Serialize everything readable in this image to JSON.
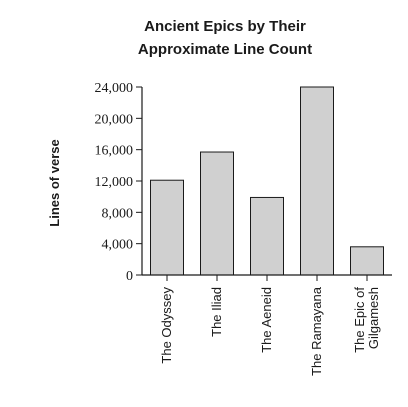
{
  "chart_data": {
    "type": "bar",
    "title_lines": [
      "Ancient Epics by Their",
      "Approximate Line Count"
    ],
    "xlabel": "",
    "ylabel": "Lines of verse",
    "ylim": [
      0,
      24000
    ],
    "y_ticks": [
      "0",
      "4,000",
      "8,000",
      "12,000",
      "16,000",
      "20,000",
      "24,000"
    ],
    "y_tick_values": [
      0,
      4000,
      8000,
      12000,
      16000,
      20000,
      24000
    ],
    "categories": [
      [
        "The Odyssey"
      ],
      [
        "The Iliad"
      ],
      [
        "The Aeneid"
      ],
      [
        "The Ramayana"
      ],
      [
        "The Epic of",
        "Gilgamesh"
      ]
    ],
    "values": [
      12100,
      15700,
      9900,
      24000,
      3600
    ],
    "bar_color": "#d0d0d0",
    "bar_stroke": "#1a1a1a",
    "grid": false,
    "legend": "none"
  }
}
